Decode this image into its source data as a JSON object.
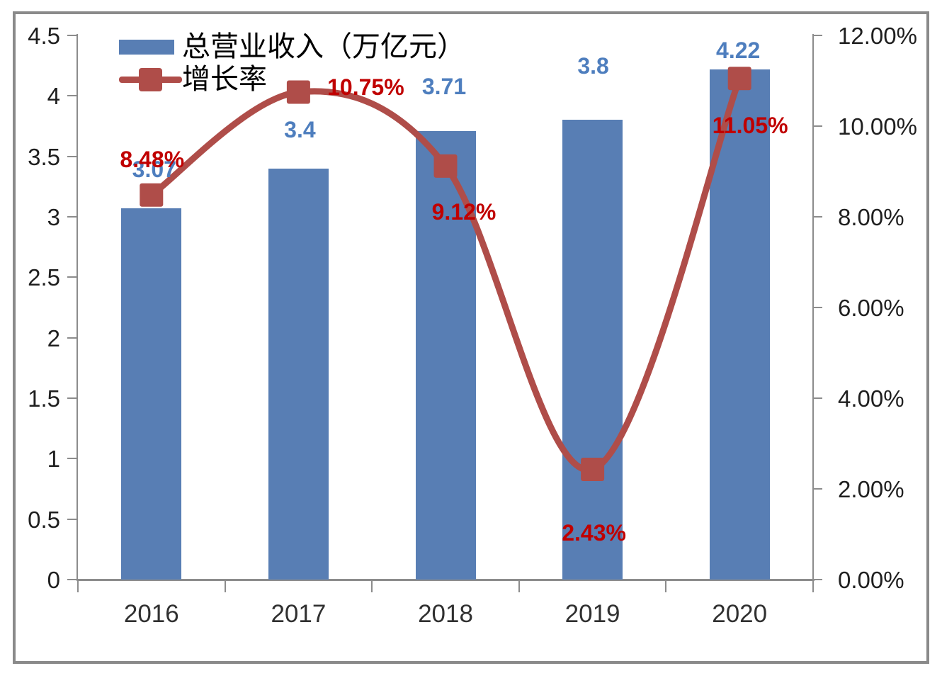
{
  "chart_data": {
    "type": "combo (bar + smoothed line, dual axis)",
    "title": "",
    "categories": [
      "2016",
      "2017",
      "2018",
      "2019",
      "2020"
    ],
    "series": [
      {
        "name": "总营业收入（万亿元）",
        "type": "bar",
        "axis": "left",
        "values": [
          3.07,
          3.4,
          3.71,
          3.8,
          4.22
        ],
        "point_labels": [
          "3.07",
          "3.4",
          "3.71",
          "3.8",
          "4.22"
        ],
        "bar_color": "#587EB4",
        "label_color": "#4E7EBE"
      },
      {
        "name": "增长率",
        "type": "line",
        "axis": "right",
        "values": [
          8.48,
          10.75,
          9.12,
          2.43,
          11.05
        ],
        "point_labels": [
          "8.48%",
          "10.75%",
          "9.12%",
          "2.43%",
          "11.05%"
        ],
        "line_color": "#AF4D49",
        "marker": "square",
        "label_color": "#C00000"
      }
    ],
    "left_axis": {
      "min": 0,
      "max": 4.5,
      "step": 0.5,
      "ticks": [
        "4.5",
        "4",
        "3.5",
        "3",
        "2.5",
        "2",
        "1.5",
        "1",
        "0.5",
        "0"
      ]
    },
    "right_axis": {
      "min": 0,
      "max": 12,
      "step": 2,
      "ticks": [
        "12.00%",
        "10.00%",
        "8.00%",
        "6.00%",
        "4.00%",
        "2.00%",
        "0.00%"
      ]
    },
    "legend": {
      "position": "top-left-inside",
      "items": [
        {
          "label": "总营业收入（万亿元）",
          "swatch": "bar"
        },
        {
          "label": "增长率",
          "swatch": "line-with-square-marker"
        }
      ]
    },
    "grid": false,
    "frame_color": "#8A8A8A",
    "axis_color": "#8C8C8C"
  }
}
